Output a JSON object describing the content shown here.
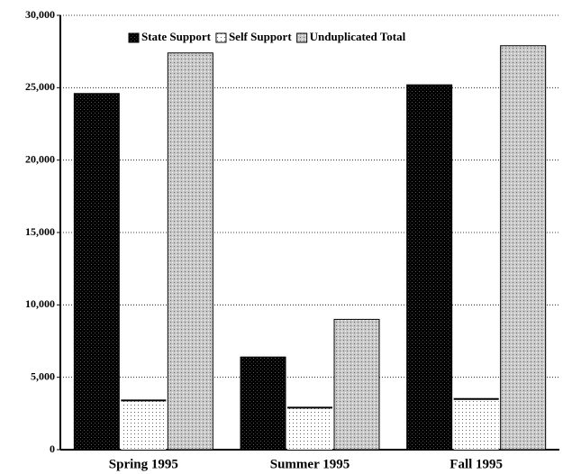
{
  "chart_data": {
    "type": "bar",
    "categories": [
      "Spring 1995",
      "Summer 1995",
      "Fall 1995"
    ],
    "series": [
      {
        "name": "State Support",
        "color": "#000000",
        "values": [
          24600,
          6400,
          25200
        ]
      },
      {
        "name": "Self Support",
        "color": "#ffffff",
        "values": [
          3400,
          2900,
          3500
        ]
      },
      {
        "name": "Unduplicated Total",
        "color": "#c8c8c8",
        "values": [
          27400,
          9000,
          27900
        ]
      }
    ],
    "ylim": [
      0,
      30000
    ],
    "yticks": [
      0,
      {
        "value": 5000,
        "label": "5,000"
      },
      {
        "value": 10000,
        "label": "10,000"
      },
      {
        "value": 15000,
        "label": "15,000"
      },
      {
        "value": 20000,
        "label": "20,000"
      },
      {
        "value": 25000,
        "label": "25,000"
      },
      {
        "value": 30000,
        "label": "30,000"
      }
    ],
    "grid": true,
    "legend": "top"
  }
}
